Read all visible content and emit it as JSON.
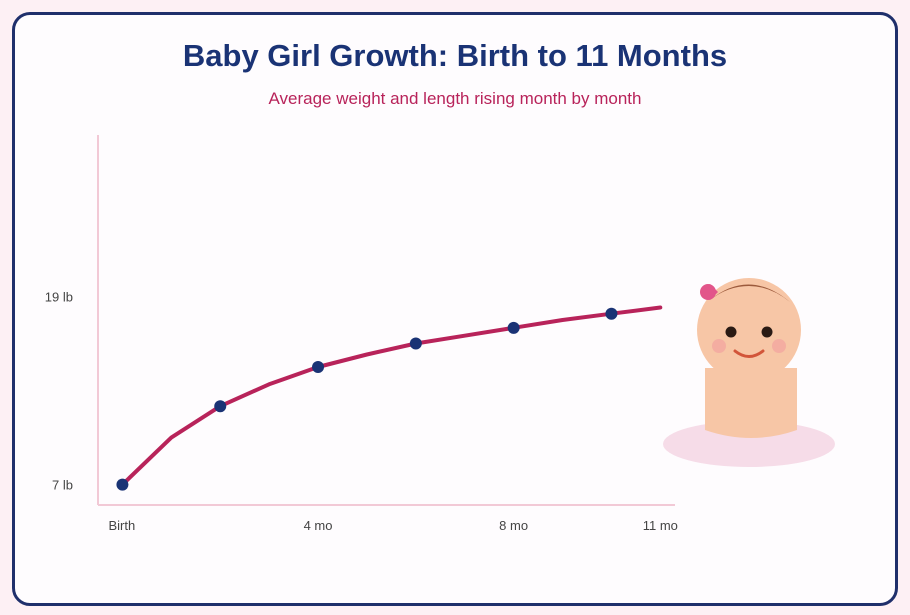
{
  "header": {
    "title": "Baby Girl Growth: Birth to 11 Months",
    "subtitle": "Average weight and length rising month by month"
  },
  "colors": {
    "title": "#1a3375",
    "subtitle": "#b8235a",
    "line": "#b8235a",
    "points": "#1a3375",
    "axis": "#f2c9d6",
    "card_border": "#1f2f6b"
  },
  "chart_data": {
    "type": "line",
    "title": "Baby Girl Growth: Birth to 11 Months",
    "subtitle": "Average weight and length rising month by month",
    "xlabel": "",
    "ylabel": "",
    "x_ticks": [
      {
        "value": 0,
        "label": "Birth"
      },
      {
        "value": 4,
        "label": "4 mo"
      },
      {
        "value": 8,
        "label": "8 mo"
      },
      {
        "value": 11,
        "label": "11 mo"
      }
    ],
    "y_ticks": [
      {
        "value": 7,
        "label": "7 lb"
      },
      {
        "value": 19,
        "label": "19 lb"
      }
    ],
    "xlim": [
      -0.5,
      11.3
    ],
    "ylim": [
      5.7,
      29.3
    ],
    "grid": false,
    "series": [
      {
        "x": [
          0,
          1,
          2,
          3,
          4,
          5,
          6,
          7,
          8,
          9,
          10,
          11
        ],
        "y": [
          7.0,
          10.0,
          12.0,
          13.4,
          14.5,
          15.3,
          16.0,
          16.5,
          17.0,
          17.5,
          17.9,
          18.3
        ],
        "markers_at": [
          0,
          2,
          4,
          6,
          8,
          10
        ]
      }
    ]
  },
  "illustration": {
    "description_icon": "baby-girl-icon"
  }
}
